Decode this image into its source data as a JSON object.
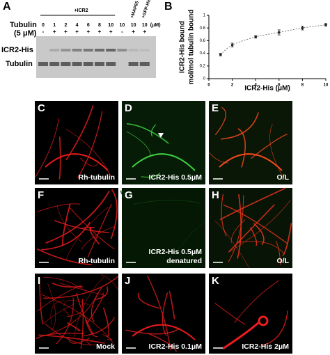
{
  "gel": {
    "letter": "A",
    "group_label": "+ICR2",
    "extra_labels": [
      "+MAP65",
      "+GFP-His"
    ],
    "row_titles": [
      "Tubulin",
      "(5 μM)"
    ],
    "unit": "(μM)",
    "lane_concentrations": [
      "0",
      "1",
      "2",
      "4",
      "6",
      "8",
      "10",
      "10",
      "10",
      "10"
    ],
    "lane_signs": [
      "-",
      "+",
      "+",
      "+",
      "+",
      "+",
      "+",
      "-",
      "+",
      "+"
    ],
    "band_labels": [
      "ICR2-His",
      "Tubulin"
    ]
  },
  "chart_data": {
    "type": "scatter",
    "letter": "B",
    "ylabel": [
      "ICR2-His bound",
      "mol/mol tubulin bound"
    ],
    "xlabel": "ICR2-His (μM)",
    "x": [
      1,
      2,
      4,
      6,
      8,
      10
    ],
    "series": [
      {
        "color": "#222222",
        "values": [
          0.38,
          0.53,
          0.66,
          0.73,
          0.8,
          0.85
        ],
        "errors": [
          0.02,
          0.03,
          0.02,
          0.04,
          0.03,
          0.02
        ]
      }
    ],
    "xlim": [
      0,
      10
    ],
    "xticks": [
      0,
      2,
      4,
      6,
      8,
      10
    ],
    "ylim": [
      0,
      1
    ],
    "yticks": [
      0,
      0.2,
      0.4,
      0.6,
      0.8,
      1
    ],
    "fit": "dashed"
  },
  "panels": [
    {
      "letter": "C",
      "caption": [
        "Rh-tubulin"
      ]
    },
    {
      "letter": "D",
      "caption": [
        "ICR2-His 0.5μM"
      ]
    },
    {
      "letter": "E",
      "caption": [
        "O/L"
      ]
    },
    {
      "letter": "F",
      "caption": [
        "Rh-tubulin"
      ]
    },
    {
      "letter": "G",
      "caption": [
        "ICR2-His 0.5μM",
        "denatured"
      ]
    },
    {
      "letter": "H",
      "caption": [
        "O/L"
      ]
    },
    {
      "letter": "I",
      "caption": [
        "Mock"
      ]
    },
    {
      "letter": "J",
      "caption": [
        "ICR2-His 0.1μM"
      ]
    },
    {
      "letter": "K",
      "caption": [
        "ICR2-His 2μM"
      ]
    }
  ]
}
